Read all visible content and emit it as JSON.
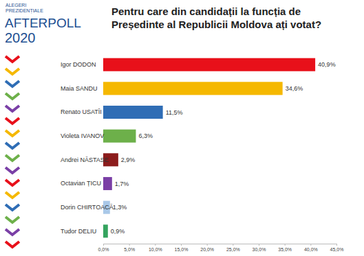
{
  "chart_data": {
    "type": "bar",
    "orientation": "horizontal",
    "title": "Pentru care din candidații la funcția de Președinte al Republicii Moldova ați votat?",
    "annotations": [
      "ALEGERI PREZIDENȚIALE",
      "AFTERPOLL",
      "2020"
    ],
    "categories": [
      "Igor DODON",
      "Maia SANDU",
      "Renato USATÎI",
      "Violeta IVANOV",
      "Andrei NĂSTASE",
      "Octavian ȚICU",
      "Dorin CHIRTOACĂ",
      "Tudor DELIU"
    ],
    "values": [
      40.9,
      34.6,
      11.5,
      6.3,
      2.9,
      1.7,
      1.3,
      0.9
    ],
    "value_labels": [
      "40,9%",
      "34,6%",
      "11,5%",
      "6,3%",
      "2,9%",
      "1,7%",
      "1,3%",
      "0,9%"
    ],
    "colors": [
      "#e8101a",
      "#f5b800",
      "#2f6db5",
      "#6db04a",
      "#8c1c1c",
      "#7a3fa6",
      "#a9c8e8",
      "#35a45f"
    ],
    "xlim": [
      0,
      45
    ],
    "xticks": [
      {
        "value": 0,
        "label": "0,0%"
      },
      {
        "value": 5,
        "label": "5,0%"
      },
      {
        "value": 10,
        "label": "10,0%"
      },
      {
        "value": 15,
        "label": "15,0%"
      },
      {
        "value": 20,
        "label": "20,0%"
      },
      {
        "value": 25,
        "label": "25,0%"
      },
      {
        "value": 30,
        "label": "30,0%"
      },
      {
        "value": 35,
        "label": "35,0%"
      },
      {
        "value": 40,
        "label": "40,0%"
      },
      {
        "value": 45,
        "label": "45,0%"
      }
    ],
    "grid": false,
    "data_labels": true,
    "tick_labels": true
  }
}
